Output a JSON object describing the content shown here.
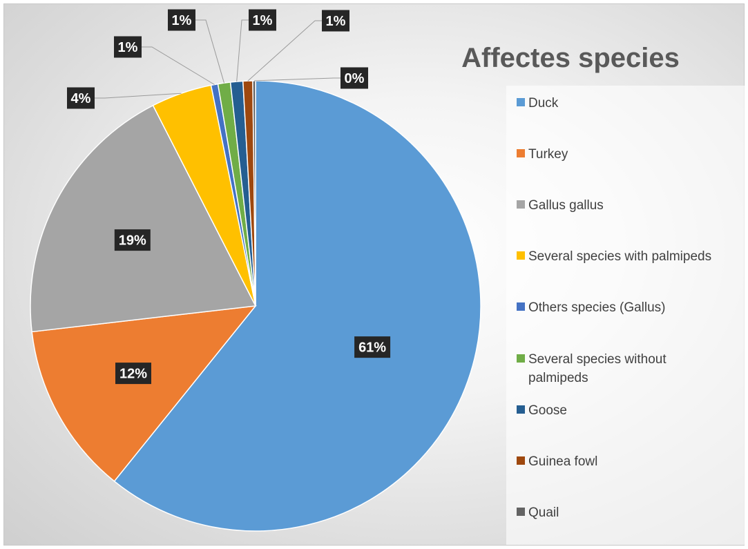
{
  "chart_data": {
    "type": "pie",
    "title": "Affectes species",
    "categories": [
      "Duck",
      "Turkey",
      "Gallus gallus",
      "Several species with palmipeds",
      "Others species (Gallus)",
      "Several species without palmipeds",
      "Goose",
      "Guinea fowl",
      "Quail"
    ],
    "values": [
      61.4,
      12.5,
      19.5,
      4.4,
      0.5,
      0.9,
      0.9,
      0.7,
      0.2
    ],
    "data_labels": [
      "61%",
      "12%",
      "19%",
      "4%",
      "1%",
      "1%",
      "1%",
      "1%",
      "0%"
    ],
    "colors": [
      "#5b9bd5",
      "#ed7d31",
      "#a5a5a5",
      "#ffc000",
      "#4472c4",
      "#70ad47",
      "#255e91",
      "#9e480e",
      "#636363"
    ],
    "legend_position": "right"
  }
}
